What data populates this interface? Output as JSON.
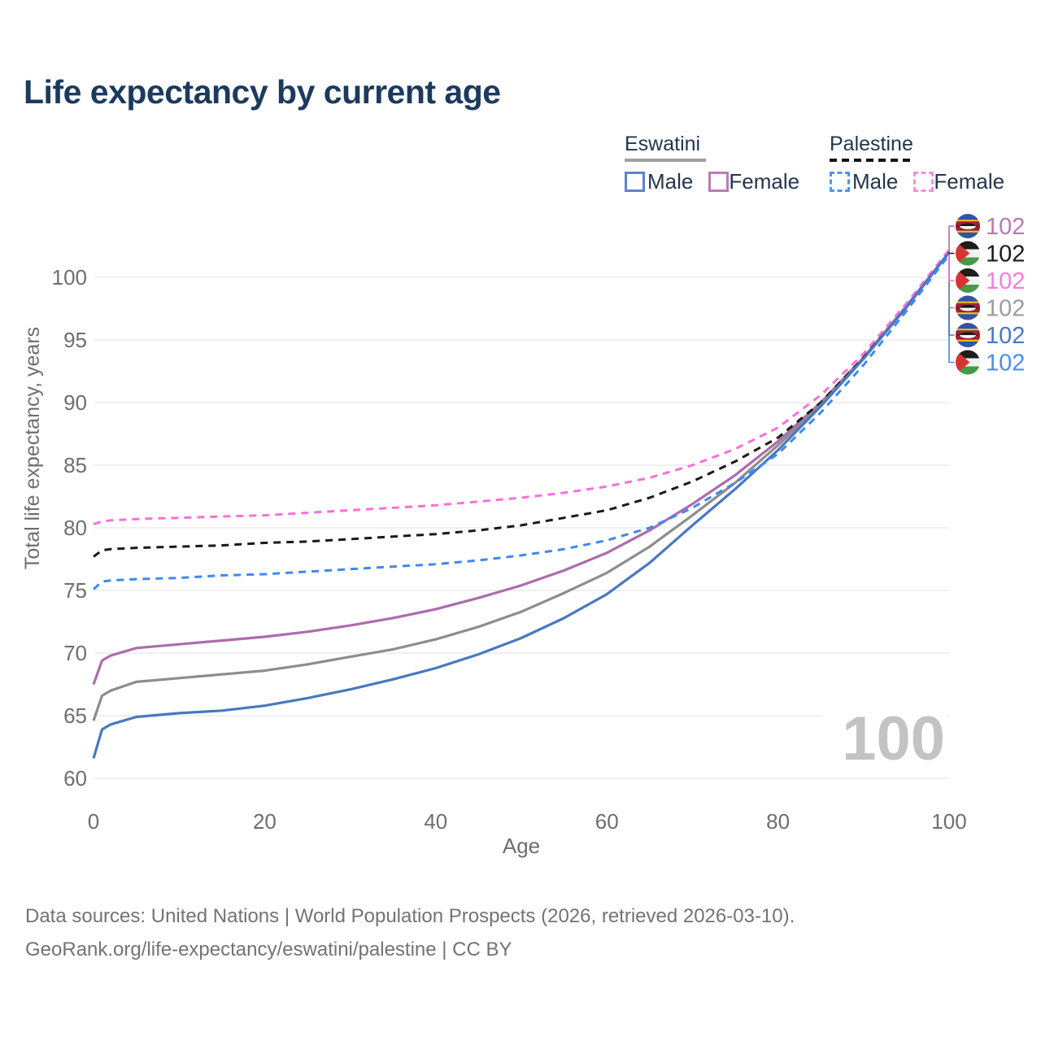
{
  "title": "Life expectancy by current age",
  "watermark": "100",
  "legend": {
    "groups": [
      {
        "label": "Eswatini",
        "line_style": "solid",
        "line_color": "#a0a0a0",
        "items": [
          {
            "label": "Male",
            "color": "#5b85c8",
            "style": "solid"
          },
          {
            "label": "Female",
            "color": "#b97cb5",
            "style": "solid"
          }
        ]
      },
      {
        "label": "Palestine",
        "line_style": "dashed",
        "line_color": "#141414",
        "items": [
          {
            "label": "Male",
            "color": "#4d93f3",
            "style": "dashed"
          },
          {
            "label": "Female",
            "color": "#fb8ce4",
            "style": "dashed"
          }
        ]
      }
    ]
  },
  "chart_data": {
    "type": "line",
    "title": "Life expectancy by current age",
    "xlabel": "Age",
    "ylabel": "Total life expectancy, years",
    "xlim": [
      0,
      100
    ],
    "ylim": [
      60,
      102.5
    ],
    "xticks": [
      0,
      20,
      40,
      60,
      80,
      100
    ],
    "yticks": [
      60,
      65,
      70,
      75,
      80,
      85,
      90,
      95,
      100
    ],
    "grid": "horizontal",
    "legend_position": "top-right",
    "x": [
      0,
      1,
      2,
      5,
      10,
      15,
      20,
      25,
      30,
      35,
      40,
      45,
      50,
      55,
      60,
      65,
      70,
      75,
      80,
      85,
      90,
      95,
      100
    ],
    "series": [
      {
        "name": "Eswatini Female",
        "country": "eswatini",
        "sex": "female",
        "dash": "solid",
        "color": "#ad6cab",
        "label_color": "#b67ab3",
        "end_label": "102",
        "label_row": 0,
        "values": [
          67.5,
          69.4,
          69.8,
          70.4,
          70.7,
          71.0,
          71.3,
          71.7,
          72.2,
          72.8,
          73.5,
          74.4,
          75.4,
          76.6,
          78.0,
          79.8,
          81.9,
          84.2,
          86.9,
          90.0,
          93.6,
          97.7,
          102.0
        ]
      },
      {
        "name": "Palestine",
        "country": "palestine",
        "sex": "both",
        "dash": "dashed",
        "color": "#191919",
        "label_color": "#1a1a1a",
        "end_label": "102",
        "label_row": 1,
        "values": [
          77.7,
          78.2,
          78.3,
          78.4,
          78.5,
          78.6,
          78.8,
          78.9,
          79.1,
          79.3,
          79.5,
          79.8,
          80.2,
          80.8,
          81.4,
          82.4,
          83.7,
          85.3,
          87.2,
          90.0,
          93.6,
          97.6,
          102.0
        ]
      },
      {
        "name": "Palestine Female",
        "country": "palestine",
        "sex": "female",
        "dash": "dashed",
        "color": "#fb6fd8",
        "label_color": "#fb7ade",
        "end_label": "102",
        "label_row": 2,
        "values": [
          80.3,
          80.5,
          80.6,
          80.7,
          80.8,
          80.9,
          81.0,
          81.2,
          81.4,
          81.6,
          81.8,
          82.1,
          82.4,
          82.8,
          83.3,
          84.0,
          85.0,
          86.3,
          88.0,
          90.6,
          93.9,
          97.9,
          102.2
        ]
      },
      {
        "name": "Eswatini",
        "country": "eswatini",
        "sex": "both",
        "dash": "solid",
        "color": "#8d8d8d",
        "label_color": "#9c9c9c",
        "end_label": "102",
        "label_row": 3,
        "values": [
          64.6,
          66.6,
          67.0,
          67.7,
          68.0,
          68.3,
          68.6,
          69.1,
          69.7,
          70.3,
          71.1,
          72.1,
          73.3,
          74.8,
          76.4,
          78.5,
          81.0,
          83.6,
          86.6,
          89.8,
          93.5,
          97.6,
          102.0
        ]
      },
      {
        "name": "Eswatini Male",
        "country": "eswatini",
        "sex": "male",
        "dash": "solid",
        "color": "#4878c0",
        "label_color": "#4878c0",
        "end_label": "102",
        "label_row": 4,
        "values": [
          61.6,
          63.9,
          64.3,
          64.9,
          65.2,
          65.4,
          65.8,
          66.4,
          67.1,
          67.9,
          68.8,
          69.9,
          71.2,
          72.8,
          74.7,
          77.2,
          80.2,
          83.1,
          86.2,
          89.7,
          93.5,
          97.6,
          102.0
        ]
      },
      {
        "name": "Palestine Male",
        "country": "palestine",
        "sex": "male",
        "dash": "dashed",
        "color": "#3d89f1",
        "label_color": "#4a8df0",
        "end_label": "102",
        "label_row": 5,
        "values": [
          75.1,
          75.7,
          75.8,
          75.9,
          76.0,
          76.2,
          76.3,
          76.5,
          76.7,
          76.9,
          77.1,
          77.4,
          77.8,
          78.3,
          79.0,
          80.0,
          81.6,
          83.6,
          85.9,
          89.2,
          93.0,
          97.3,
          101.8
        ]
      }
    ]
  },
  "footer": {
    "line1": "Data sources: United Nations | World Population Prospects (2026, retrieved 2026-03-10).",
    "line2": "GeoRank.org/life-expectancy/eswatini/palestine | CC BY"
  }
}
